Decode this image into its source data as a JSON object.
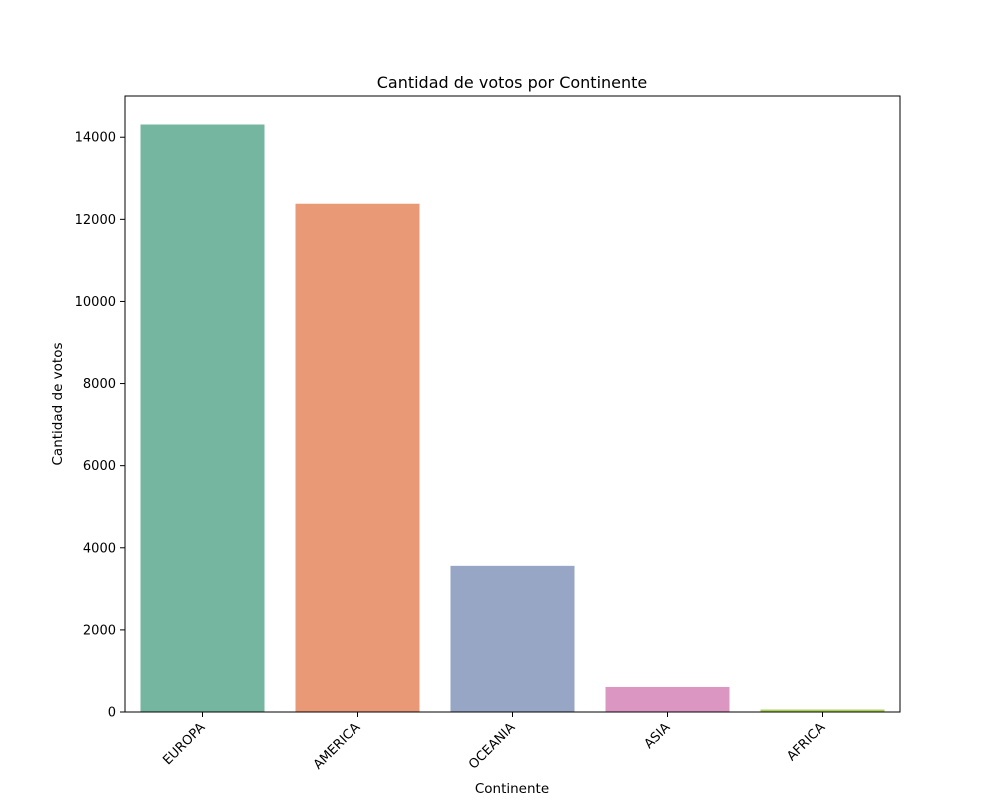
{
  "chart_data": {
    "type": "bar",
    "title": "Cantidad de votos por Continente",
    "xlabel": "Continente",
    "ylabel": "Cantidad de votos",
    "categories": [
      "EUROPA",
      "AMERICA",
      "OCEANIA",
      "ASIA",
      "AFRICA"
    ],
    "values": [
      14310,
      12380,
      3560,
      610,
      60
    ],
    "colors": [
      "#75b6a0",
      "#ea9976",
      "#96a6c4",
      "#db97c2",
      "#a9cf59"
    ],
    "ylim": [
      0,
      15000
    ],
    "yticks": [
      0,
      2000,
      4000,
      6000,
      8000,
      10000,
      12000,
      14000
    ],
    "ytick_labels": [
      "0",
      "2000",
      "4000",
      "6000",
      "8000",
      "10000",
      "12000",
      "14000"
    ],
    "grid": false,
    "legend": "none"
  }
}
